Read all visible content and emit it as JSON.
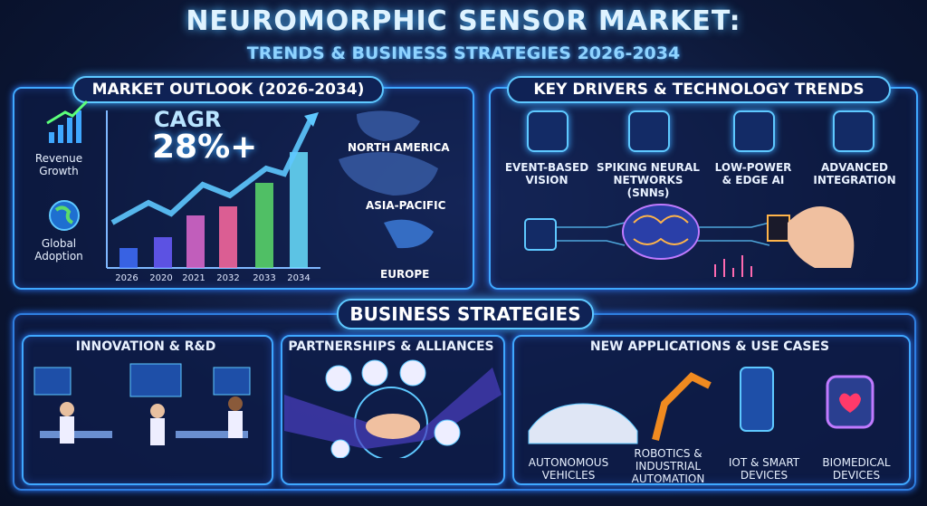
{
  "header": {
    "title": "NEUROMORPHIC SENSOR MARKET:",
    "subtitle": "TRENDS & BUSINESS STRATEGIES 2026-2034"
  },
  "market_outlook": {
    "title": "MARKET OUTLOOK (2026-2034)",
    "side_labels": [
      "Revenue Growth",
      "Global Adoption"
    ],
    "cagr_label": "CAGR",
    "cagr_value": "28%+",
    "years": [
      "2026",
      "2020",
      "2021",
      "2032",
      "2033",
      "2034"
    ],
    "regions": [
      "NORTH AMERICA",
      "ASIA-PACIFIC",
      "EUROPE"
    ]
  },
  "drivers": {
    "title": "KEY DRIVERS & TECHNOLOGY TRENDS",
    "items": [
      "EVENT-BASED VISION",
      "SPIKING NEURAL NETWORKS (SNNs)",
      "LOW-POWER & EDGE AI",
      "ADVANCED INTEGRATION"
    ]
  },
  "business_strategies": {
    "title": "BUSINESS STRATEGIES",
    "sections": [
      {
        "title": "INNOVATION & R&D"
      },
      {
        "title": "PARTNERSHIPS & ALLIANCES"
      },
      {
        "title": "NEW APPLICATIONS & USE CASES",
        "items": [
          "AUTONOMOUS VEHICLES",
          "ROBOTICS & INDUSTRIAL AUTOMATION",
          "IOT & SMART DEVICES",
          "BIOMEDICAL DEVICES"
        ]
      }
    ]
  }
}
